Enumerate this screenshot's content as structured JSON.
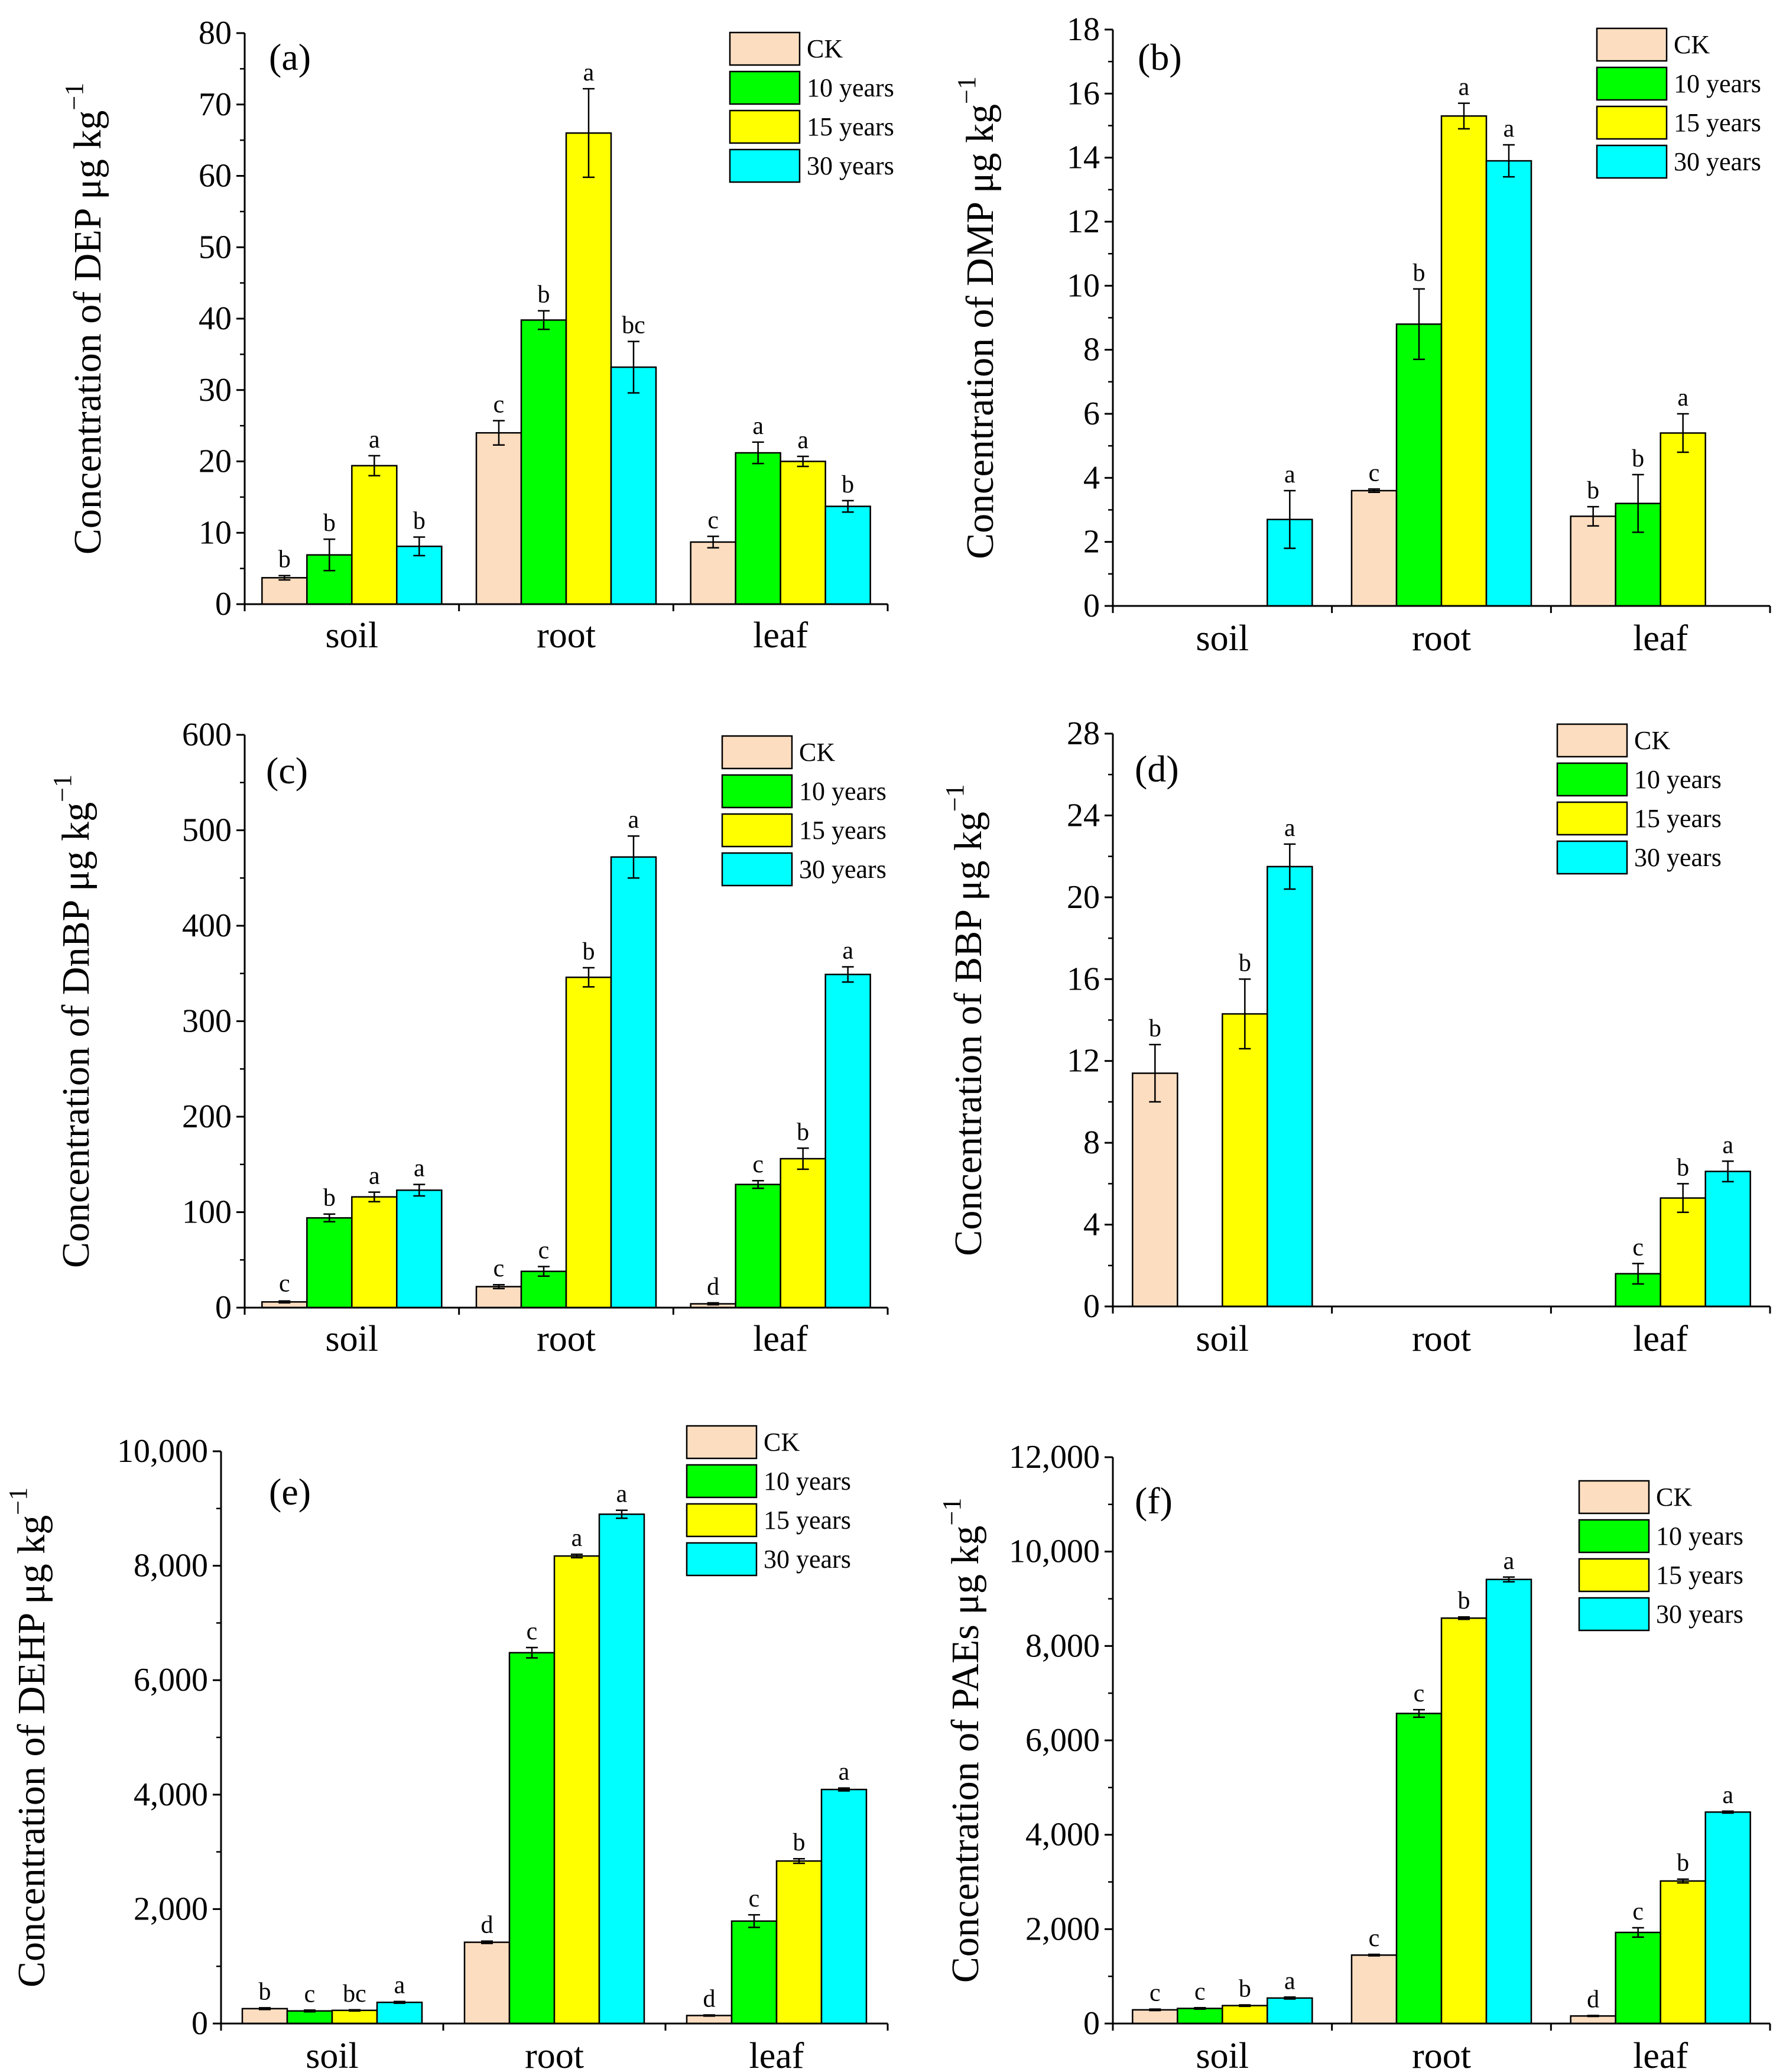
{
  "categories": [
    "soil",
    "root",
    "leaf"
  ],
  "legend_labels": [
    "CK",
    "10 years",
    "15 years",
    "30 years"
  ],
  "series_colors": [
    "#FCDDC0",
    "#00FF00",
    "#FFFF00",
    "#00FFFF"
  ],
  "unit_prefix": "μg kg",
  "unit_exponent": "−1",
  "chart_data": [
    {
      "type": "bar",
      "panel": "(a)",
      "ylabel": "Concentration of DEP",
      "ylim": [
        0,
        80
      ],
      "yticks": [
        0,
        10,
        20,
        30,
        40,
        50,
        60,
        70,
        80
      ],
      "ytick_labels": [
        "0",
        "10",
        "20",
        "30",
        "40",
        "50",
        "60",
        "70",
        "80"
      ],
      "categories": [
        "soil",
        "root",
        "leaf"
      ],
      "series": [
        {
          "name": "CK",
          "values": [
            3.7,
            24.0,
            8.7
          ],
          "errors": [
            0.3,
            1.7,
            0.8
          ],
          "letters": [
            "b",
            "c",
            "c"
          ]
        },
        {
          "name": "10 years",
          "values": [
            6.9,
            39.8,
            21.2
          ],
          "errors": [
            2.2,
            1.3,
            1.5
          ],
          "letters": [
            "b",
            "b",
            "a"
          ]
        },
        {
          "name": "15 years",
          "values": [
            19.4,
            66.0,
            20.0
          ],
          "errors": [
            1.4,
            6.2,
            0.7
          ],
          "letters": [
            "a",
            "a",
            "a"
          ]
        },
        {
          "name": "30 years",
          "values": [
            8.1,
            33.2,
            13.7
          ],
          "errors": [
            1.3,
            3.6,
            0.8
          ],
          "letters": [
            "b",
            "bc",
            "b"
          ]
        }
      ]
    },
    {
      "type": "bar",
      "panel": "(b)",
      "ylabel": "Concentration of DMP",
      "ylim": [
        0,
        18
      ],
      "yticks": [
        0,
        2,
        4,
        6,
        8,
        10,
        12,
        14,
        16,
        18
      ],
      "ytick_labels": [
        "0",
        "2",
        "4",
        "6",
        "8",
        "10",
        "12",
        "14",
        "16",
        "18"
      ],
      "categories": [
        "soil",
        "root",
        "leaf"
      ],
      "series": [
        {
          "name": "CK",
          "values": [
            null,
            3.6,
            2.8
          ],
          "errors": [
            null,
            0.05,
            0.3
          ],
          "letters": [
            "",
            "c",
            "b"
          ]
        },
        {
          "name": "10 years",
          "values": [
            null,
            8.8,
            3.2
          ],
          "errors": [
            null,
            1.1,
            0.9
          ],
          "letters": [
            "",
            "b",
            "b"
          ]
        },
        {
          "name": "15 years",
          "values": [
            null,
            15.3,
            5.4
          ],
          "errors": [
            null,
            0.4,
            0.6
          ],
          "letters": [
            "",
            "a",
            "a"
          ]
        },
        {
          "name": "30 years",
          "values": [
            2.7,
            13.9,
            null
          ],
          "errors": [
            0.9,
            0.5,
            null
          ],
          "letters": [
            "a",
            "a",
            ""
          ]
        }
      ]
    },
    {
      "type": "bar",
      "panel": "(c)",
      "ylabel": "Concentration of DnBP",
      "ylim": [
        0,
        600
      ],
      "yticks": [
        0,
        100,
        200,
        300,
        400,
        500,
        600
      ],
      "ytick_labels": [
        "0",
        "100",
        "200",
        "300",
        "400",
        "500",
        "600"
      ],
      "categories": [
        "soil",
        "root",
        "leaf"
      ],
      "series": [
        {
          "name": "CK",
          "values": [
            6,
            22,
            4
          ],
          "errors": [
            1,
            2,
            1
          ],
          "letters": [
            "",
            "c",
            "d"
          ]
        },
        {
          "name": "10 years",
          "values": [
            94,
            38,
            129
          ],
          "errors": [
            4,
            5,
            4
          ],
          "letters": [
            "b",
            "c",
            "c"
          ]
        },
        {
          "name": "15 years",
          "values": [
            116,
            346,
            156
          ],
          "errors": [
            5,
            10,
            11
          ],
          "letters": [
            "a",
            "b",
            "b"
          ]
        },
        {
          "name": "30 years",
          "values": [
            123,
            472,
            349
          ],
          "errors": [
            6,
            22,
            8
          ],
          "letters": [
            "a",
            "a",
            "a"
          ]
        }
      ],
      "extra_labels": [
        {
          "category": 0,
          "series": 0,
          "text": "c"
        }
      ]
    },
    {
      "type": "bar",
      "panel": "(d)",
      "ylabel": "Concentration of BBP",
      "ylim": [
        0,
        28
      ],
      "yticks": [
        0,
        4,
        8,
        12,
        16,
        20,
        24,
        28
      ],
      "ytick_labels": [
        "0",
        "4",
        "8",
        "12",
        "16",
        "20",
        "24",
        "28"
      ],
      "categories": [
        "soil",
        "root",
        "leaf"
      ],
      "series": [
        {
          "name": "CK",
          "values": [
            11.4,
            null,
            null
          ],
          "errors": [
            1.4,
            null,
            null
          ],
          "letters": [
            "b",
            "",
            ""
          ]
        },
        {
          "name": "10 years",
          "values": [
            null,
            null,
            1.6
          ],
          "errors": [
            null,
            null,
            0.5
          ],
          "letters": [
            "",
            "",
            "c"
          ]
        },
        {
          "name": "15 years",
          "values": [
            14.3,
            null,
            5.3
          ],
          "errors": [
            1.7,
            null,
            0.7
          ],
          "letters": [
            "b",
            "",
            "b"
          ]
        },
        {
          "name": "30 years",
          "values": [
            21.5,
            null,
            6.6
          ],
          "errors": [
            1.1,
            null,
            0.5
          ],
          "letters": [
            "a",
            "",
            "a"
          ]
        }
      ]
    },
    {
      "type": "bar",
      "panel": "(e)",
      "ylabel": "Concentration of DEHP",
      "ylim": [
        0,
        10000
      ],
      "yticks": [
        0,
        2000,
        4000,
        6000,
        8000,
        10000
      ],
      "ytick_labels": [
        "0",
        "2,000",
        "4,000",
        "6,000",
        "8,000",
        "10,000"
      ],
      "categories": [
        "soil",
        "root",
        "leaf"
      ],
      "series": [
        {
          "name": "CK",
          "values": [
            260,
            1420,
            140
          ],
          "errors": [
            15,
            20,
            10
          ],
          "letters": [
            "b",
            "d",
            "d"
          ]
        },
        {
          "name": "10 years",
          "values": [
            220,
            6480,
            1790
          ],
          "errors": [
            15,
            90,
            110
          ],
          "letters": [
            "c",
            "c",
            "c"
          ]
        },
        {
          "name": "15 years",
          "values": [
            230,
            8170,
            2840
          ],
          "errors": [
            10,
            30,
            40
          ],
          "letters": [
            "bc",
            "a",
            "b"
          ]
        },
        {
          "name": "30 years",
          "values": [
            370,
            8900,
            4090
          ],
          "errors": [
            15,
            70,
            25
          ],
          "letters": [
            "a",
            "a",
            "a"
          ]
        }
      ]
    },
    {
      "type": "bar",
      "panel": "(f)",
      "ylabel": "Concentration of PAEs",
      "ylim": [
        0,
        12000
      ],
      "yticks": [
        0,
        2000,
        4000,
        6000,
        8000,
        10000,
        12000
      ],
      "ytick_labels": [
        "0",
        "2,000",
        "4,000",
        "6,000",
        "8,000",
        "10,000",
        "12,000"
      ],
      "categories": [
        "soil",
        "root",
        "leaf"
      ],
      "series": [
        {
          "name": "CK",
          "values": [
            290,
            1450,
            160
          ],
          "errors": [
            15,
            15,
            10
          ],
          "letters": [
            "c",
            "c",
            "d"
          ]
        },
        {
          "name": "10 years",
          "values": [
            320,
            6570,
            1930
          ],
          "errors": [
            15,
            80,
            100
          ],
          "letters": [
            "c",
            "c",
            "c"
          ]
        },
        {
          "name": "15 years",
          "values": [
            380,
            8590,
            3020
          ],
          "errors": [
            15,
            25,
            40
          ],
          "letters": [
            "b",
            "b",
            "b"
          ]
        },
        {
          "name": "30 years",
          "values": [
            540,
            9410,
            4480
          ],
          "errors": [
            20,
            50,
            20
          ],
          "letters": [
            "a",
            "a",
            "a"
          ]
        }
      ]
    }
  ]
}
